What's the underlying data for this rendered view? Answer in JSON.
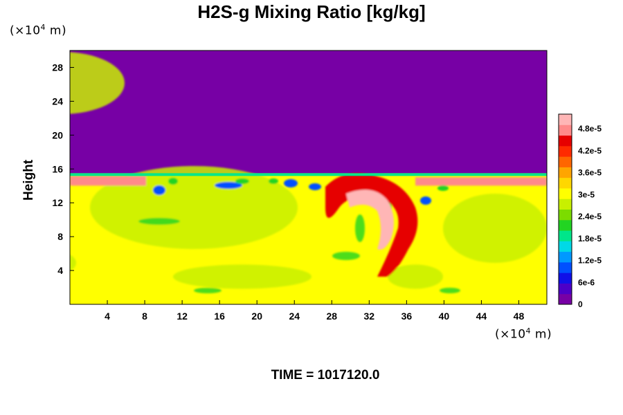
{
  "chart_data": {
    "type": "heatmap",
    "title": "H2S-g Mixing Ratio [kg/kg]",
    "ylabel": "Height",
    "xlabel": "",
    "x_unit_prefix": "(×10",
    "unit_exp": "4",
    "unit_suffix": " m)",
    "xlim": [
      0,
      51
    ],
    "ylim": [
      0,
      30
    ],
    "x_ticks": [
      "4",
      "8",
      "12",
      "16",
      "20",
      "24",
      "28",
      "32",
      "36",
      "40",
      "44",
      "48"
    ],
    "x_tick_values": [
      4,
      8,
      12,
      16,
      20,
      24,
      28,
      32,
      36,
      40,
      44,
      48
    ],
    "y_ticks": [
      "4",
      "8",
      "12",
      "16",
      "20",
      "24",
      "28"
    ],
    "y_tick_values": [
      4,
      8,
      12,
      16,
      20,
      24,
      28
    ],
    "colorbar": {
      "range": [
        0,
        5.2e-05
      ],
      "labels": [
        "0",
        "6e-6",
        "1.2e-5",
        "1.8e-5",
        "2.4e-5",
        "3e-5",
        "3.6e-5",
        "4.2e-5",
        "4.8e-5"
      ],
      "label_values": [
        0,
        6e-06,
        1.2e-05,
        1.8e-05,
        2.4e-05,
        3e-05,
        3.6e-05,
        4.2e-05,
        4.8e-05
      ],
      "colors": [
        "#7700a5",
        "#4c00c8",
        "#1010e8",
        "#0050ff",
        "#0099ff",
        "#00d9e6",
        "#00e68a",
        "#22d422",
        "#7cdc00",
        "#c8f000",
        "#ffff00",
        "#ffd700",
        "#ffa500",
        "#ff6600",
        "#ff2a00",
        "#e60000",
        "#ff8a8a",
        "#ffb6b6"
      ]
    },
    "background_value": 0,
    "interface_height": 15.5,
    "grid": false
  },
  "time_label": "TIME = 1017120.0"
}
